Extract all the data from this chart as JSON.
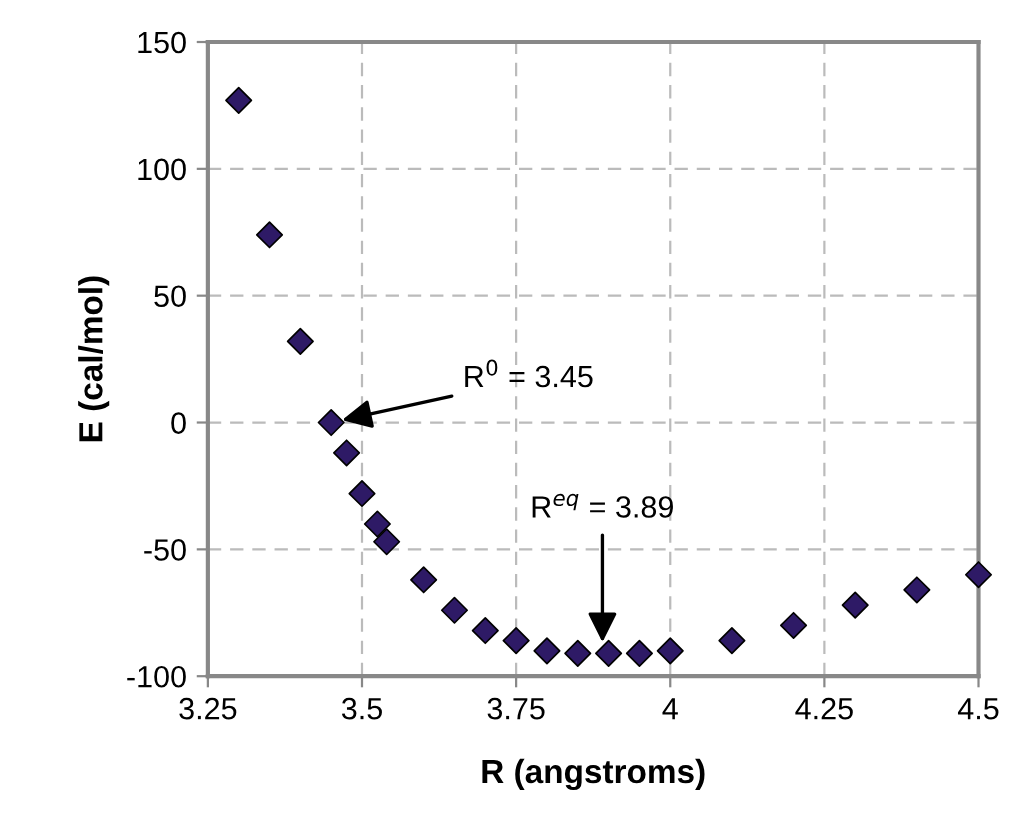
{
  "chart_data": {
    "type": "scatter",
    "xlabel": "R (angstroms)",
    "ylabel": "E (cal/mol)",
    "x": [
      3.3,
      3.35,
      3.4,
      3.45,
      3.475,
      3.5,
      3.525,
      3.54,
      3.6,
      3.65,
      3.7,
      3.75,
      3.8,
      3.85,
      3.9,
      3.95,
      4.0,
      4.1,
      4.2,
      4.3,
      4.4,
      4.5
    ],
    "series": [
      {
        "color": "#2e1a66",
        "values": [
          127,
          74,
          32,
          0,
          -12,
          -28,
          -40,
          -47,
          -62,
          -74,
          -82,
          -86,
          -90,
          -91,
          -91,
          -91,
          -90,
          -86,
          -80,
          -72,
          -66,
          -60
        ]
      }
    ],
    "xlim": [
      3.25,
      4.5
    ],
    "xticks": [
      3.25,
      3.5,
      3.75,
      4,
      4.25,
      4.5
    ],
    "ylim": [
      -100,
      150
    ],
    "yticks": [
      -100,
      -50,
      0,
      50,
      100,
      150
    ],
    "grid": true,
    "marker": "diamond",
    "annotations": [
      {
        "text": "R$^{0}$ = 3.45",
        "x": 3.45,
        "y": 0
      },
      {
        "text": "R$^{eq}$ = 3.89",
        "x": 3.89,
        "y": -91
      }
    ]
  }
}
